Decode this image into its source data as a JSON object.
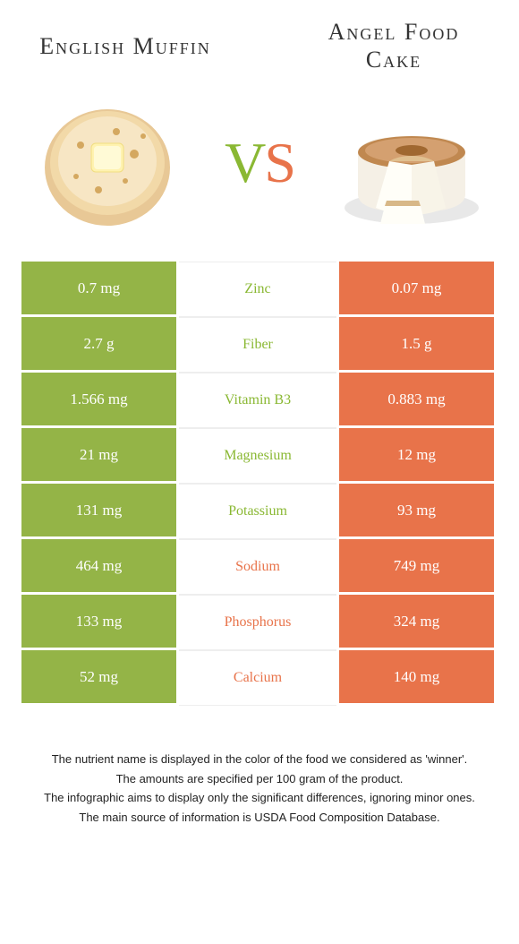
{
  "colors": {
    "left": "#94b447",
    "right": "#e8734a",
    "left_text": "#8ab833",
    "right_text": "#e8734a"
  },
  "left_food": {
    "title": "English Muffin"
  },
  "right_food": {
    "title": "Angel Food Cake"
  },
  "vs": {
    "v": "V",
    "s": "S"
  },
  "rows": [
    {
      "left": "0.7 mg",
      "label": "Zinc",
      "right": "0.07 mg",
      "winner": "left"
    },
    {
      "left": "2.7 g",
      "label": "Fiber",
      "right": "1.5 g",
      "winner": "left"
    },
    {
      "left": "1.566 mg",
      "label": "Vitamin B3",
      "right": "0.883 mg",
      "winner": "left"
    },
    {
      "left": "21 mg",
      "label": "Magnesium",
      "right": "12 mg",
      "winner": "left"
    },
    {
      "left": "131 mg",
      "label": "Potassium",
      "right": "93 mg",
      "winner": "left"
    },
    {
      "left": "464 mg",
      "label": "Sodium",
      "right": "749 mg",
      "winner": "right"
    },
    {
      "left": "133 mg",
      "label": "Phosphorus",
      "right": "324 mg",
      "winner": "right"
    },
    {
      "left": "52 mg",
      "label": "Calcium",
      "right": "140 mg",
      "winner": "right"
    }
  ],
  "footer": {
    "line1": "The nutrient name is displayed in the color of the food we considered as 'winner'.",
    "line2": "The amounts are specified per 100 gram of the product.",
    "line3": "The infographic aims to display only the significant differences, ignoring minor ones.",
    "line4": "The main source of information is USDA Food Composition Database."
  }
}
